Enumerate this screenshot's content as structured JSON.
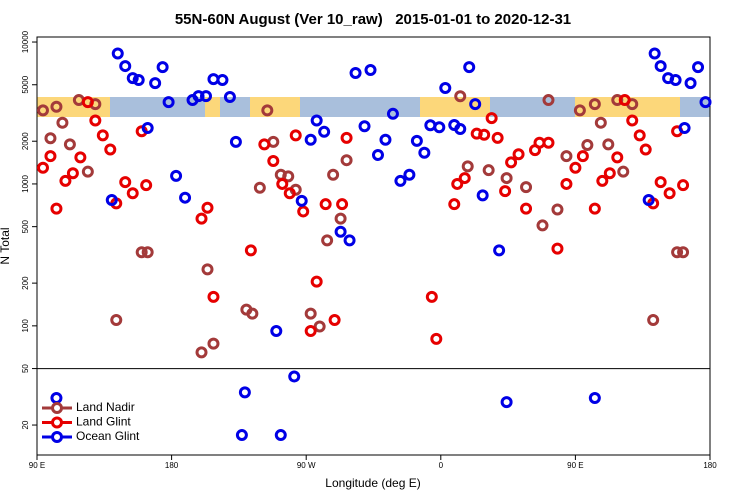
{
  "chart_data": {
    "type": "scatter",
    "title": "55N-60N August (Ver 10_raw)   2015-01-01 to 2020-12-31",
    "xlabel": "Longitude (deg E)",
    "ylabel": "N Total",
    "xlim": [
      90,
      540
    ],
    "ylim": [
      12.3,
      10850
    ],
    "log_y": true,
    "xticks": [
      {
        "value": 90,
        "label": "90 E"
      },
      {
        "value": 180,
        "label": "180"
      },
      {
        "value": 270,
        "label": "90 W"
      },
      {
        "value": 360,
        "label": "0"
      },
      {
        "value": 450,
        "label": "90 E"
      },
      {
        "value": 540,
        "label": "180"
      }
    ],
    "yticks": [
      20,
      50,
      100,
      200,
      500,
      1000,
      2000,
      5000,
      10000
    ],
    "hline": 50,
    "legend": "lower left",
    "series": [
      {
        "name": "Land Nadir",
        "color": "#a33a3a",
        "x": [
          94,
          99,
          103,
          107,
          112,
          118,
          124,
          129,
          143,
          160,
          164,
          200,
          204,
          208,
          230,
          234,
          239,
          244,
          248,
          253,
          258,
          263,
          273,
          279,
          288,
          293,
          297,
          284,
          373,
          378,
          392,
          404,
          417,
          428,
          432,
          438,
          444,
          453,
          458,
          463,
          467,
          472,
          478,
          482,
          488,
          502,
          518,
          522
        ],
        "values": [
          3300,
          2100,
          3500,
          2700,
          1900,
          3900,
          1220,
          3650,
          110,
          330,
          330,
          65,
          250,
          75,
          130,
          122,
          940,
          3300,
          1980,
          1160,
          1130,
          910,
          122,
          99,
          1160,
          570,
          1470,
          400,
          4150,
          1330,
          1250,
          1100,
          950,
          510,
          3900,
          660,
          1570,
          3300,
          1880,
          3650,
          2700,
          1900,
          3900,
          1220,
          3650,
          110,
          330,
          330
        ]
      },
      {
        "name": "Land Glint",
        "color": "#e60000",
        "x": [
          94,
          99,
          103,
          109,
          114,
          119,
          124,
          129,
          134,
          139,
          143,
          149,
          154,
          160,
          163,
          200,
          204,
          208,
          233,
          242,
          248,
          254,
          259,
          263,
          268,
          273,
          277,
          283,
          289,
          294,
          297,
          354,
          357,
          369,
          371,
          376,
          384,
          389,
          394,
          398,
          403,
          407,
          412,
          417,
          423,
          426,
          432,
          438,
          444,
          450,
          455,
          463,
          468,
          473,
          478,
          483,
          488,
          493,
          497,
          502,
          507,
          513,
          518,
          522
        ],
        "values": [
          1300,
          1570,
          670,
          1050,
          1190,
          1540,
          3770,
          2800,
          2200,
          1750,
          730,
          1030,
          860,
          2350,
          980,
          570,
          680,
          160,
          340,
          1900,
          1450,
          1000,
          860,
          2200,
          640,
          92,
          205,
          720,
          110,
          720,
          2110,
          160,
          81,
          720,
          1000,
          1100,
          2260,
          2220,
          2910,
          2110,
          890,
          1420,
          1620,
          670,
          1730,
          1950,
          1950,
          350,
          1000,
          1300,
          1570,
          670,
          1050,
          1190,
          1540,
          3900,
          2800,
          2200,
          1750,
          730,
          1030,
          860,
          2350,
          980
        ]
      },
      {
        "name": "Ocean Glint",
        "color": "#0000e6",
        "x": [
          103,
          140,
          144,
          149,
          154,
          158,
          164,
          169,
          174,
          178,
          183,
          189,
          194,
          198,
          203,
          208,
          214,
          219,
          223,
          227,
          229,
          250,
          253,
          262,
          267,
          277,
          273,
          282,
          293,
          299,
          303,
          309,
          313,
          318,
          323,
          328,
          333,
          339,
          344,
          349,
          353,
          359,
          363,
          369,
          373,
          379,
          383,
          388,
          399,
          404,
          463,
          499,
          503,
          507,
          512,
          517,
          523,
          527,
          532,
          537
        ],
        "values": [
          31,
          770,
          8300,
          6770,
          5570,
          5400,
          2480,
          5130,
          6650,
          3770,
          1140,
          800,
          3900,
          4160,
          4160,
          5480,
          5400,
          4100,
          1980,
          17,
          34,
          92,
          17,
          44,
          760,
          2800,
          2050,
          2330,
          460,
          400,
          6050,
          2550,
          6350,
          1600,
          2050,
          3120,
          1050,
          1160,
          2010,
          1660,
          2590,
          2510,
          4740,
          2600,
          2440,
          6650,
          3650,
          830,
          340,
          29,
          31,
          770,
          8300,
          6770,
          5570,
          5400,
          2480,
          5130,
          6650,
          3770
        ]
      }
    ]
  }
}
